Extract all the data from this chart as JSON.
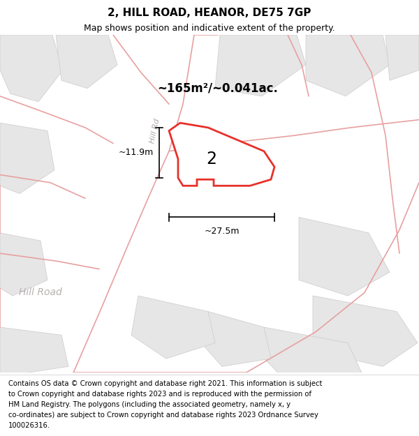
{
  "title": "2, HILL ROAD, HEANOR, DE75 7GP",
  "subtitle": "Map shows position and indicative extent of the property.",
  "footer_lines": [
    "Contains OS data © Crown copyright and database right 2021. This information is subject",
    "to Crown copyright and database rights 2023 and is reproduced with the permission of",
    "HM Land Registry. The polygons (including the associated geometry, namely x, y",
    "co-ordinates) are subject to Crown copyright and database rights 2023 Ordnance Survey",
    "100026316."
  ],
  "map_bg": "#f0eeee",
  "plot_fill": "#ffffff",
  "plot_edge": "#e8302a",
  "area_label": "~165m²/~0.041ac.",
  "house_number": "2",
  "dim_width": "~27.5m",
  "dim_height": "~11.9m",
  "road_label_diagonal": "Hill Rd",
  "road_label_bottom": "Hill Road",
  "title_fontsize": 11,
  "subtitle_fontsize": 9,
  "footer_fontsize": 7.2
}
